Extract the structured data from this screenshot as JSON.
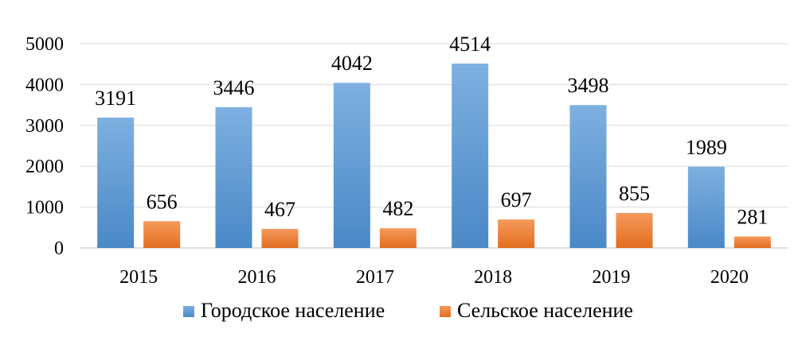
{
  "chart_data": {
    "type": "bar",
    "categories": [
      "2015",
      "2016",
      "2017",
      "2018",
      "2019",
      "2020"
    ],
    "series": [
      {
        "name": "Городское население",
        "values": [
          3191,
          3446,
          4042,
          4514,
          3498,
          1989
        ],
        "color": "#5B9BD5"
      },
      {
        "name": "Сельское население",
        "values": [
          656,
          467,
          482,
          697,
          855,
          281
        ],
        "color": "#ED7D31"
      }
    ],
    "ylim": [
      0,
      5000
    ],
    "yticks": [
      "0",
      "1000",
      "2000",
      "3000",
      "4000",
      "5000"
    ],
    "grid": true,
    "legend": "bottom"
  }
}
